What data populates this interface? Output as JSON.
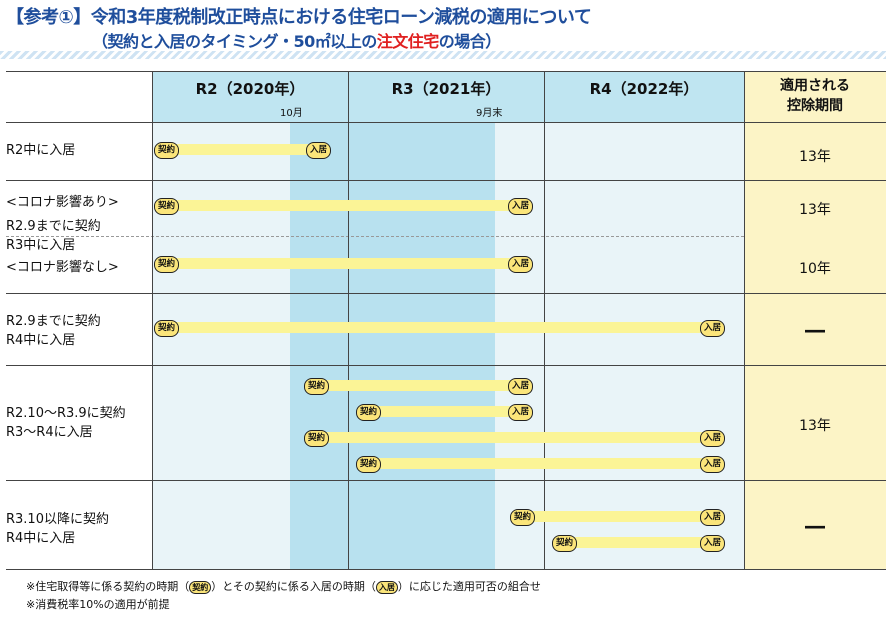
{
  "title": {
    "line1": "【参考①】令和3年度税制改正時点における住宅ローン減税の適用について",
    "line2_pre": "（契約と入居のタイミング・50㎡以上の",
    "line2_red": "注文住宅",
    "line2_post": "の場合）"
  },
  "header": {
    "years": [
      "R2（2020年）",
      "R3（2021年）",
      "R4（2022年）"
    ],
    "r2_sub": "10月",
    "r3_sub": "9月末",
    "deduction_label": [
      "適用される",
      "控除期間"
    ]
  },
  "rows": [
    {
      "label": [
        "R2中に入居"
      ],
      "period": "13年"
    },
    {
      "label": [
        "<コロナ影響あり>",
        "R2.9までに契約"
      ],
      "period": "13年"
    },
    {
      "label": [
        "R3中に入居",
        "<コロナ影響なし>"
      ],
      "period": "10年"
    },
    {
      "label": [
        "R2.9までに契約",
        "R4中に入居"
      ],
      "period": "―"
    },
    {
      "label": [
        "R2.10～R3.9に契約",
        "R3～R4に入居"
      ],
      "period": "13年"
    },
    {
      "label": [
        "R3.10以降に契約",
        "R4中に入居"
      ],
      "period": "―"
    }
  ],
  "pill_text": {
    "contract": "契約",
    "move_in": "入居"
  },
  "notes": {
    "n1_pre": "※住宅取得等に係る契約の時期（",
    "n1_mid": "）とその契約に係る入居の時期（",
    "n1_post": "）に応じた適用可否の組合せ",
    "n2": "※消費税率10%の適用が前提"
  },
  "colors": {
    "title": "#1f4e9c",
    "highlight_red": "#e02020",
    "year_header": "#bfe5f1",
    "deduction_bg": "#fcf4c6",
    "grid_bg": "#e9f4f8",
    "bar": "#fbf496",
    "pill": "#fbe57a"
  }
}
